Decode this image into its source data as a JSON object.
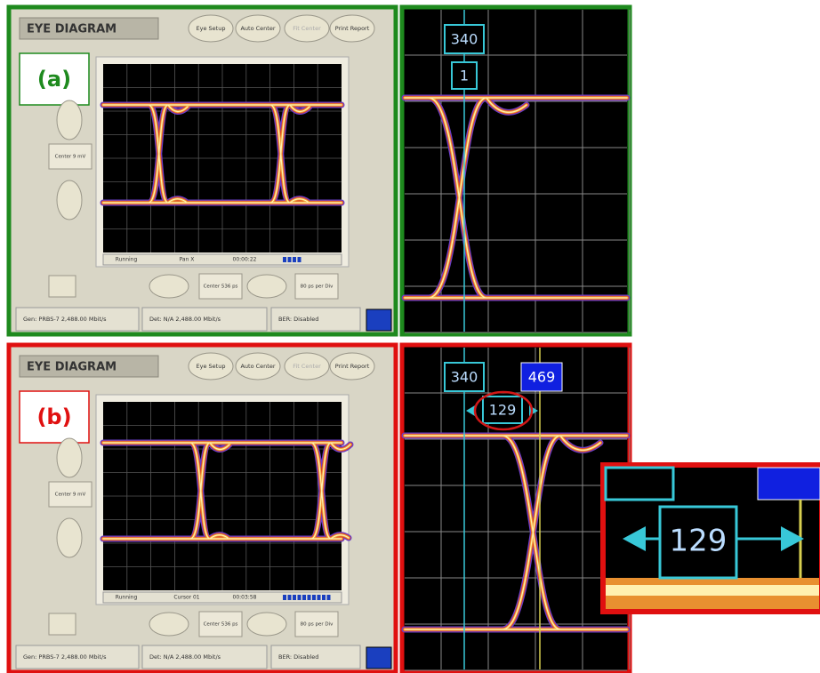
{
  "panels": [
    {
      "title": "EYE DIAGRAM",
      "buttons": [
        "Eye Setup",
        "Auto Center",
        "Fit Center",
        "Print Report"
      ],
      "label": "(a)",
      "left_readout": "Center 9 mV",
      "status": [
        "Running",
        "Pan X",
        "00:00:22"
      ],
      "controls": [
        "Center 536 ps",
        "80 ps per Div"
      ],
      "footer": [
        "Gen: PRBS-7 2,488.00 Mbit/s",
        "Det: N/A 2,488.00 Mbit/s",
        "BER: Disabled"
      ],
      "zoom_cursors": [
        "340",
        "1"
      ]
    },
    {
      "title": "EYE DIAGRAM",
      "buttons": [
        "Eye Setup",
        "Auto Center",
        "Fit Center",
        "Print Report"
      ],
      "label": "(b)",
      "left_readout": "Center 9 mV",
      "status": [
        "Running",
        "Cursor 01",
        "00:03:58"
      ],
      "controls": [
        "Center 536 ps",
        "80 ps per Div"
      ],
      "footer": [
        "Gen: PRBS-7 2,488.00 Mbit/s",
        "Det: N/A 2,488.00 Mbit/s",
        "BER: Disabled"
      ],
      "zoom_cursors": [
        "340",
        "469"
      ],
      "zoom_delta": "129"
    }
  ],
  "inset": {
    "delta": "129"
  }
}
